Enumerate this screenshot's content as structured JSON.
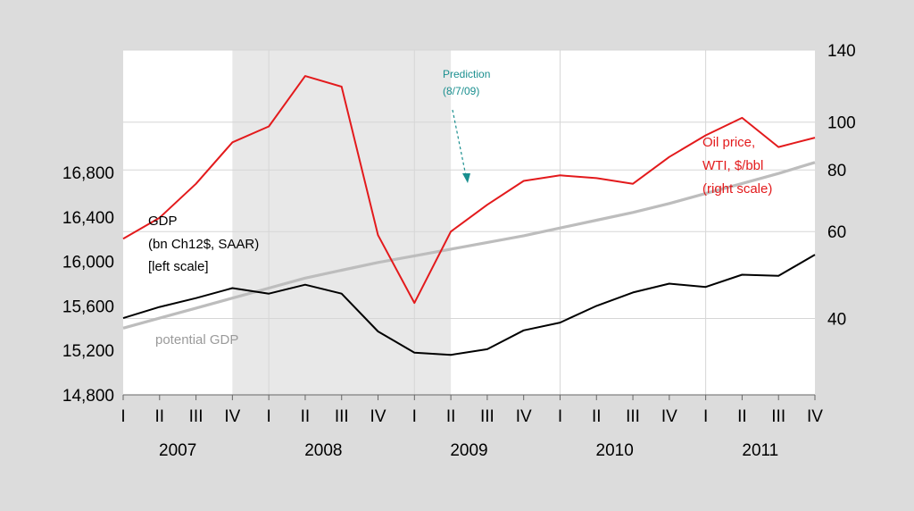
{
  "chart_data": {
    "type": "line",
    "categories": [
      "I",
      "II",
      "III",
      "IV",
      "I",
      "II",
      "III",
      "IV",
      "I",
      "II",
      "III",
      "IV",
      "I",
      "II",
      "III",
      "IV",
      "I",
      "II",
      "III",
      "IV"
    ],
    "years": [
      "2007",
      "2008",
      "2009",
      "2010",
      "2011"
    ],
    "recession_shading": {
      "from_index": 3,
      "to_index": 9
    },
    "left_axis": {
      "ticks": [
        14800,
        15200,
        15600,
        16000,
        16400,
        16800
      ],
      "tick_labels": [
        "14,800",
        "15,200",
        "15,600",
        "16,000",
        "16,400",
        "16,800"
      ],
      "range": [
        14800,
        17900
      ]
    },
    "right_axis": {
      "scale": "log",
      "ticks": [
        40,
        60,
        80,
        100,
        140
      ],
      "tick_labels": [
        "40",
        "60",
        "80",
        "100",
        "140"
      ],
      "range": [
        28,
        140
      ]
    },
    "series": [
      {
        "name": "GDP",
        "axis": "left",
        "color": "#000000",
        "values": [
          15490,
          15590,
          15670,
          15760,
          15710,
          15790,
          15710,
          15370,
          15180,
          15160,
          15210,
          15380,
          15450,
          15600,
          15720,
          15800,
          15770,
          15880,
          15870,
          16060
        ]
      },
      {
        "name": "potential GDP",
        "axis": "left",
        "color": "#bdbdbd",
        "values": [
          15400,
          15490,
          15580,
          15670,
          15760,
          15850,
          15920,
          15990,
          16050,
          16110,
          16170,
          16230,
          16300,
          16370,
          16440,
          16520,
          16610,
          16700,
          16790,
          16890
        ]
      },
      {
        "name": "Oil price",
        "axis": "right",
        "color": "#e31a1c",
        "values": [
          58,
          64,
          75,
          91,
          98,
          124,
          118,
          59,
          43,
          60,
          68,
          76,
          78,
          77,
          75,
          85,
          94,
          102,
          89,
          93
        ]
      }
    ],
    "annotations": {
      "gdp_label": [
        "GDP",
        "(bn Ch12$, SAAR)",
        "[left scale]"
      ],
      "oil_label": [
        "Oil price,",
        "WTI, $/bbl",
        "(right scale)"
      ],
      "potential_label": "potential GDP",
      "prediction_label": [
        "Prediction",
        "(8/7/09)"
      ]
    },
    "grid": true
  },
  "colors": {
    "background": "#dcdcdc",
    "plot_area": "#ffffff",
    "shading": "#e8e8e8",
    "oil": "#e31a1c",
    "gdp": "#000000",
    "potential": "#bdbdbd",
    "prediction": "#1a8f8f"
  }
}
